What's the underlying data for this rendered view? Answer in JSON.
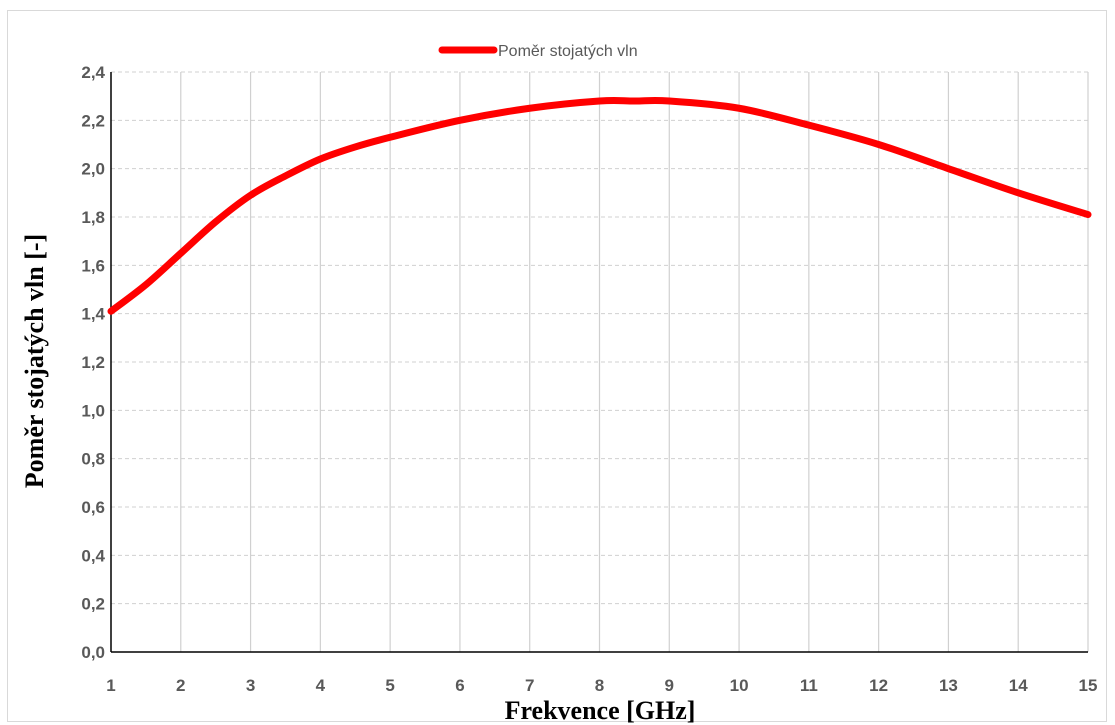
{
  "chart_data": {
    "type": "line",
    "title": "",
    "xlabel": "Frekvence [GHz]",
    "ylabel": "Poměr stojatých vln [-]",
    "xlim": [
      1,
      15
    ],
    "ylim": [
      0,
      2.4
    ],
    "x_ticks": [
      1,
      2,
      3,
      4,
      5,
      6,
      7,
      8,
      9,
      10,
      11,
      12,
      13,
      14,
      15
    ],
    "y_ticks": [
      "0,0",
      "0,2",
      "0,4",
      "0,6",
      "0,8",
      "1,0",
      "1,2",
      "1,4",
      "1,6",
      "1,8",
      "2,0",
      "2,2",
      "2,4"
    ],
    "grid": true,
    "legend_position": "top-center",
    "series": [
      {
        "name": "Poměr stojatých vln",
        "color": "#ff0000",
        "x": [
          1,
          1.5,
          2,
          2.5,
          3,
          3.5,
          4,
          4.5,
          5,
          6,
          7,
          8,
          8.5,
          9,
          10,
          11,
          12,
          13,
          14,
          15
        ],
        "y": [
          1.41,
          1.52,
          1.65,
          1.78,
          1.89,
          1.97,
          2.04,
          2.09,
          2.13,
          2.2,
          2.25,
          2.28,
          2.28,
          2.28,
          2.25,
          2.18,
          2.1,
          2.0,
          1.9,
          1.81
        ]
      }
    ]
  }
}
